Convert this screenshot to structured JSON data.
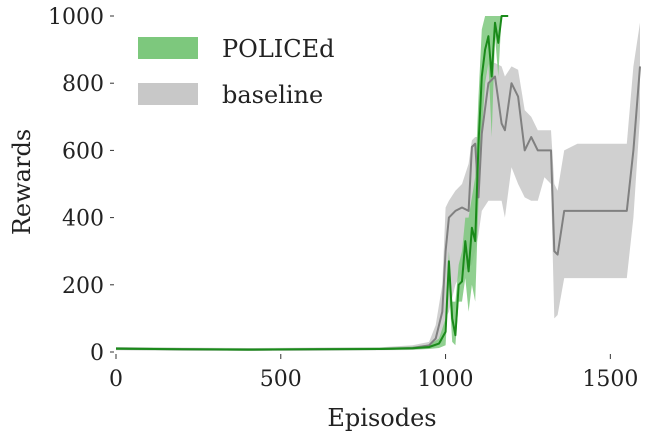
{
  "chart_data": {
    "type": "line",
    "title": "",
    "xlabel": "Episodes",
    "ylabel": "Rewards",
    "xlim": [
      0,
      1590
    ],
    "ylim": [
      0,
      1000
    ],
    "x_ticks": [
      0,
      500,
      1000,
      1500
    ],
    "y_ticks": [
      0,
      200,
      400,
      600,
      800,
      1000
    ],
    "x_tick_labels": [
      "0",
      "500",
      "1000",
      "1500"
    ],
    "y_tick_labels": [
      "0",
      "200",
      "400",
      "600",
      "800",
      "1000"
    ],
    "grid": false,
    "legend_position": "top-left",
    "series": [
      {
        "name": "baseline",
        "line_color": "#808080",
        "band_color": "#c8c8c8",
        "x": [
          0,
          200,
          400,
          600,
          800,
          900,
          950,
          970,
          990,
          1000,
          1010,
          1030,
          1050,
          1070,
          1080,
          1090,
          1100,
          1110,
          1130,
          1150,
          1170,
          1180,
          1200,
          1220,
          1240,
          1260,
          1280,
          1300,
          1320,
          1330,
          1340,
          1360,
          1400,
          1450,
          1500,
          1550,
          1570,
          1590
        ],
        "mean": [
          10,
          8,
          7,
          8,
          9,
          12,
          20,
          40,
          120,
          300,
          400,
          420,
          430,
          420,
          610,
          620,
          460,
          650,
          800,
          820,
          680,
          660,
          800,
          760,
          600,
          640,
          600,
          600,
          600,
          300,
          290,
          420,
          420,
          420,
          420,
          420,
          600,
          850
        ],
        "upper": [
          15,
          13,
          12,
          13,
          14,
          20,
          30,
          80,
          200,
          430,
          450,
          480,
          500,
          560,
          630,
          640,
          640,
          780,
          860,
          860,
          850,
          820,
          850,
          840,
          720,
          700,
          660,
          660,
          660,
          500,
          480,
          600,
          620,
          620,
          620,
          620,
          850,
          980
        ],
        "lower": [
          5,
          4,
          3,
          4,
          5,
          6,
          10,
          15,
          30,
          100,
          120,
          200,
          240,
          250,
          260,
          300,
          350,
          420,
          450,
          450,
          450,
          400,
          550,
          500,
          460,
          450,
          450,
          520,
          500,
          100,
          110,
          220,
          220,
          220,
          220,
          220,
          400,
          700
        ]
      },
      {
        "name": "POLICEd",
        "line_color": "#1a8a1a",
        "band_color": "#7dc87d",
        "x": [
          0,
          200,
          400,
          600,
          800,
          900,
          950,
          980,
          1000,
          1010,
          1020,
          1030,
          1040,
          1050,
          1060,
          1070,
          1080,
          1090,
          1100,
          1110,
          1120,
          1130,
          1140,
          1150,
          1160,
          1170,
          1180,
          1190
        ],
        "mean": [
          10,
          8,
          7,
          8,
          9,
          11,
          15,
          25,
          60,
          270,
          100,
          50,
          200,
          210,
          330,
          240,
          370,
          330,
          620,
          820,
          900,
          940,
          820,
          980,
          920,
          1000,
          1000,
          1000
        ],
        "upper": [
          14,
          12,
          11,
          12,
          13,
          16,
          22,
          40,
          100,
          300,
          150,
          150,
          260,
          300,
          400,
          400,
          460,
          520,
          760,
          960,
          1000,
          1000,
          1000,
          1000,
          1000,
          1000,
          1000,
          1000
        ],
        "lower": [
          6,
          5,
          4,
          5,
          6,
          7,
          9,
          12,
          20,
          200,
          30,
          20,
          150,
          150,
          220,
          120,
          200,
          150,
          450,
          650,
          800,
          860,
          640,
          940,
          820,
          1000,
          1000,
          1000
        ]
      }
    ]
  }
}
